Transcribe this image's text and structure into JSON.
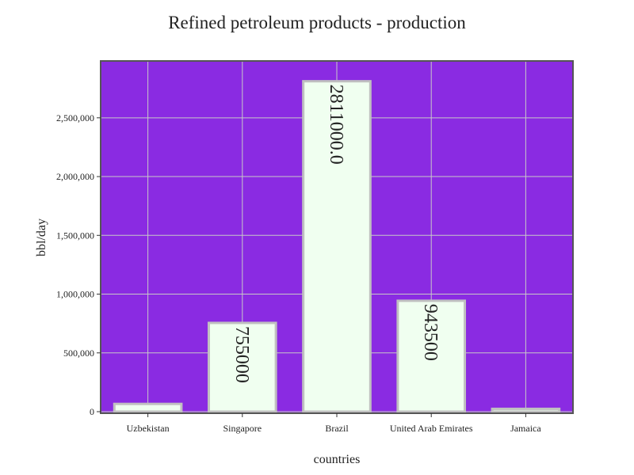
{
  "chart_data": {
    "type": "bar",
    "title": "Refined petroleum products - production",
    "xlabel": "countries",
    "ylabel": "bbl/day",
    "categories": [
      "Uzbekistan",
      "Singapore",
      "Brazil",
      "United Arab Emirates",
      "Jamaica"
    ],
    "values": [
      66000,
      755000,
      2811000,
      943500,
      24000
    ],
    "value_labels": [
      "",
      "755000",
      "2811000.0",
      "943500",
      ""
    ],
    "ylim": [
      0,
      2950000
    ],
    "yticks": [
      0,
      500000,
      1000000,
      1500000,
      2000000,
      2500000
    ],
    "ytick_labels": [
      "0",
      "500,000",
      "1,000,000",
      "1,500,000",
      "2,000,000",
      "2,500,000"
    ],
    "grid": true,
    "colors": {
      "plot_background": "#8A2BE2",
      "bar_fill": "#F0FFF0",
      "bar_stroke": "#C0C0C0",
      "grid": "#C8C8C8",
      "frame": "#555555"
    }
  }
}
